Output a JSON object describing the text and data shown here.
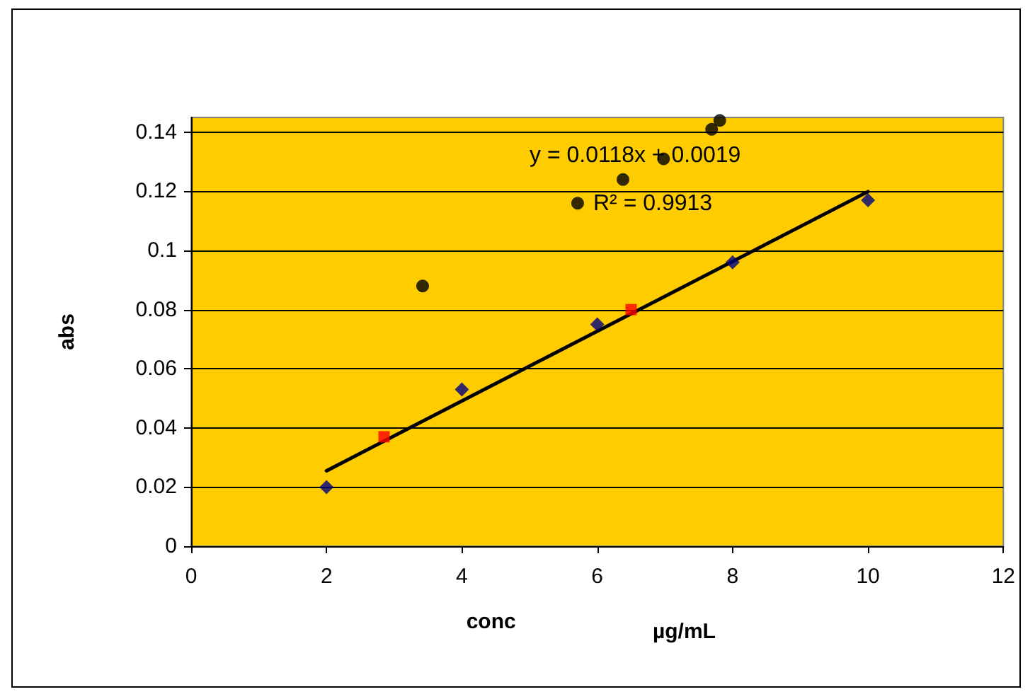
{
  "chart_data": {
    "type": "scatter",
    "xlabel": "conc",
    "ylabel": "abs",
    "annotations": [
      "y = 0.0118x + 0.0019",
      "R² = 0.9913",
      "µg/mL"
    ],
    "xlim": [
      0,
      12
    ],
    "xticks": [
      0,
      2,
      4,
      6,
      8,
      10,
      12
    ],
    "ylim": [
      0,
      0.145
    ],
    "yticks": [
      0,
      0.02,
      0.04,
      0.06,
      0.08,
      0.1,
      0.12,
      0.14
    ],
    "grid": "y",
    "series": [
      {
        "marker": "diamond",
        "color": "#000080",
        "x": [
          2,
          4,
          6,
          8,
          10
        ],
        "values": [
          0.02,
          0.053,
          0.075,
          0.096,
          0.117
        ]
      },
      {
        "marker": "square",
        "color": "#ff0000",
        "x": [
          2.85,
          6.5
        ],
        "values": [
          0.037,
          0.08
        ]
      },
      {
        "marker": "circle",
        "color": "#000000",
        "x": [
          3.42,
          5.71,
          6.38,
          6.98,
          7.69,
          7.81
        ],
        "values": [
          0.088,
          0.116,
          0.124,
          0.131,
          0.141,
          0.144
        ]
      },
      {
        "type": "line",
        "marker": "none",
        "line_style": "solid",
        "color": "#000000",
        "x": [
          2,
          10
        ],
        "values": [
          0.0255,
          0.1199
        ]
      }
    ]
  }
}
